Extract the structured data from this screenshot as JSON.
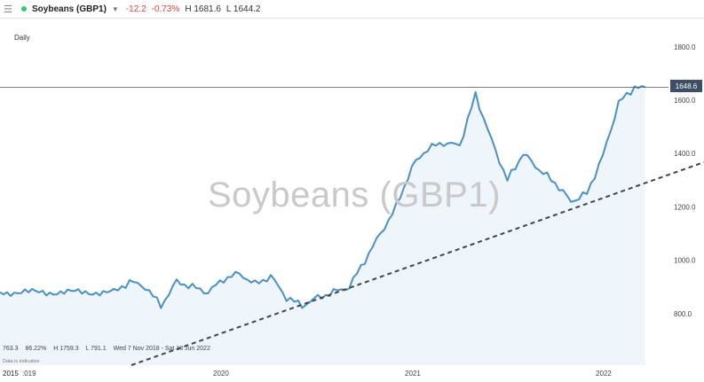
{
  "header": {
    "menu_icon": "hamburger-icon",
    "symbol": "Soybeans (GBP1)",
    "dropdown_icon": "caret-down-icon",
    "change": "-12.2",
    "change_pct": "-0.73%",
    "high": "H 1681.6",
    "low": "L 1644.2",
    "status_color": "#2ecc71"
  },
  "period_label": "Daily",
  "watermark": "Soybeans (GBP1)",
  "last_price": "1648.6",
  "stats": {
    "s1": "763.3",
    "s2": "86.22%",
    "s3": "H 1759.3",
    "s4": "L 791.1",
    "s5": "Wed 7 Nov 2018 - Sat 18 Jun 2022",
    "note": "Data is indicative"
  },
  "chart_data": {
    "type": "area",
    "title": "",
    "xlabel": "",
    "ylabel": "",
    "x_ticks": [
      "2015",
      ":019",
      "2020",
      "2021",
      "2022"
    ],
    "y_ticks": [
      800.0,
      1000.0,
      1200.0,
      1400.0,
      1600.0,
      1800.0
    ],
    "y_tick_labels": [
      "800.0",
      "1000.0",
      "1200.0",
      "1400.0",
      "1600.0",
      "1800.0"
    ],
    "ylim": [
      600,
      1900
    ],
    "grid": false,
    "colors": {
      "line": "#4a90c8",
      "fill": "#eef5fb",
      "trend": "#444444",
      "price_tag": "#3d4f66"
    },
    "series": [
      {
        "x": [
          "2019-06",
          "2019-07",
          "2019-08",
          "2019-09",
          "2019-10",
          "2019-11",
          "2019-12",
          "2020-01",
          "2020-02",
          "2020-03",
          "2020-04",
          "2020-05",
          "2020-06",
          "2020-07",
          "2020-08",
          "2020-09",
          "2020-10",
          "2020-11",
          "2020-12",
          "2021-01",
          "2021-02",
          "2021-03",
          "2021-04",
          "2021-05",
          "2021-06",
          "2021-07",
          "2021-08",
          "2021-09",
          "2021-10",
          "2021-11",
          "2021-12",
          "2022-01",
          "2022-02",
          "2022-03"
        ],
        "values": [
          880,
          920,
          900,
          830,
          920,
          900,
          880,
          930,
          950,
          910,
          940,
          860,
          830,
          860,
          880,
          900,
          1000,
          1100,
          1200,
          1350,
          1420,
          1440,
          1430,
          1620,
          1450,
          1300,
          1400,
          1340,
          1290,
          1220,
          1250,
          1390,
          1590,
          1649
        ]
      }
    ],
    "trendline": {
      "style": "dashed",
      "points": [
        {
          "x": "2019-04",
          "y": 620
        },
        {
          "x": "2022-07",
          "y": 1360
        }
      ]
    },
    "reference_line": 1648.6
  }
}
